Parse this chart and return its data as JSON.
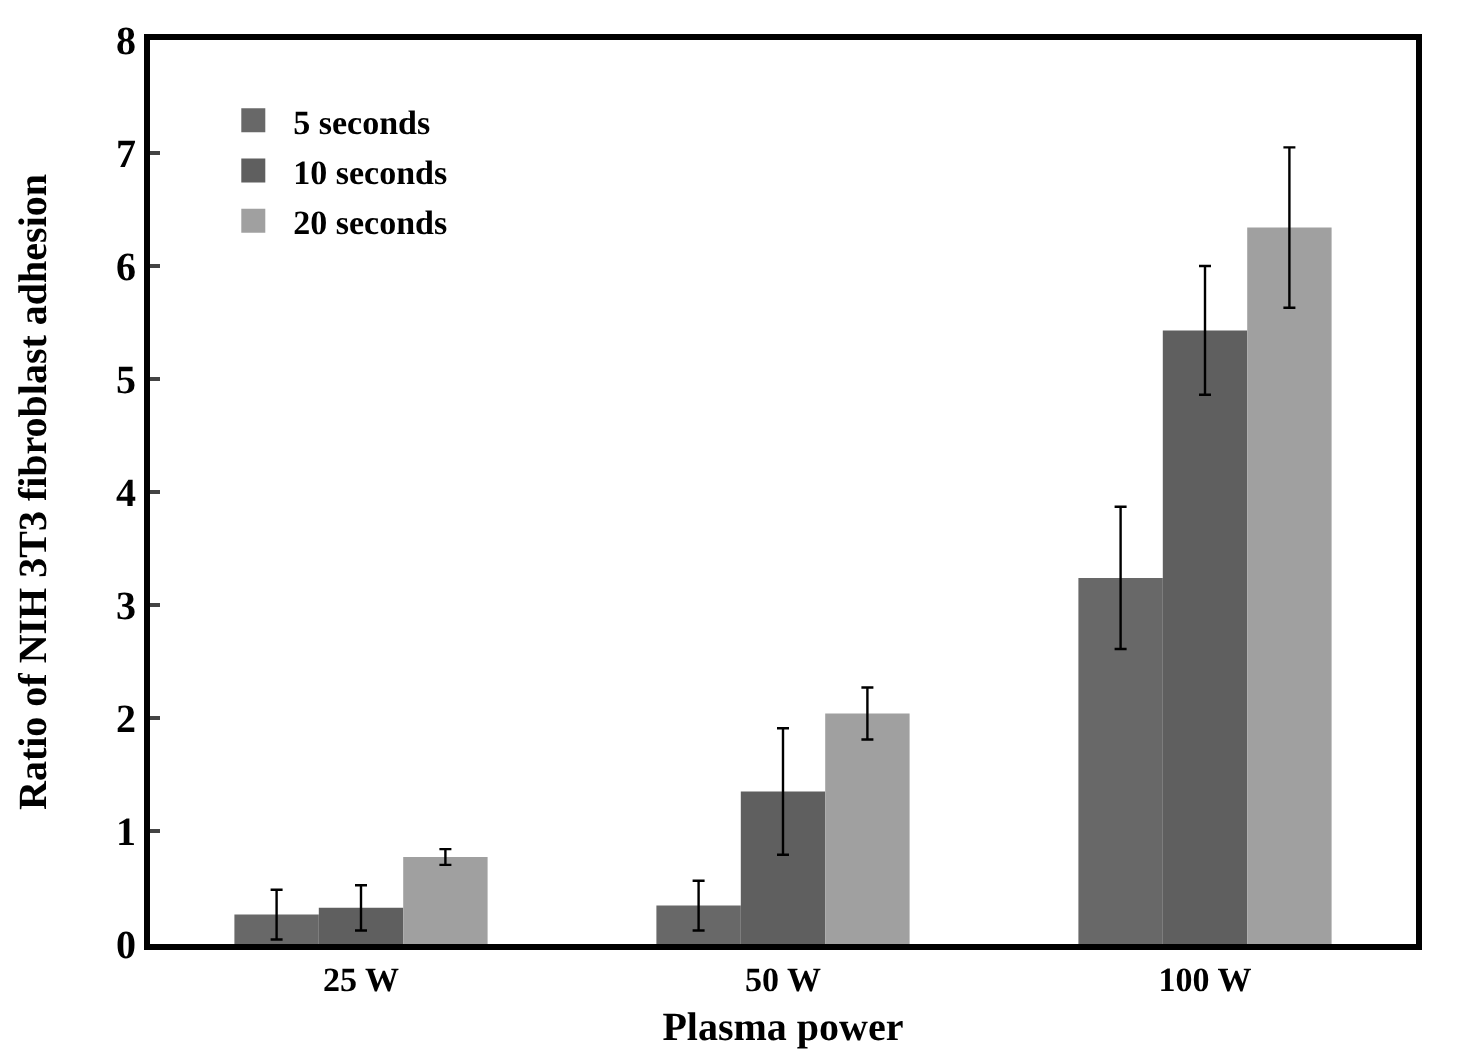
{
  "chart_data": {
    "type": "bar",
    "xlabel": "Plasma power",
    "ylabel": "Ratio of NIH 3T3 fibroblast adhesion",
    "categories": [
      "25 W",
      "50 W",
      "100 W"
    ],
    "series": [
      {
        "name": "5 seconds",
        "color": "#686868",
        "values": [
          0.26,
          0.34,
          3.24
        ],
        "errors": [
          0.22,
          0.22,
          0.63
        ]
      },
      {
        "name": "10 seconds",
        "color": "#5f5f5f",
        "values": [
          0.32,
          1.35,
          5.43
        ],
        "errors": [
          0.2,
          0.56,
          0.57
        ]
      },
      {
        "name": "20 seconds",
        "color": "#a0a0a0",
        "values": [
          0.77,
          2.04,
          6.34
        ],
        "errors": [
          0.07,
          0.23,
          0.71
        ]
      }
    ],
    "ylim": [
      0,
      8
    ],
    "yticks": [
      0,
      1,
      2,
      3,
      4,
      5,
      6,
      7,
      8
    ],
    "grid": false,
    "legend": "top left"
  }
}
